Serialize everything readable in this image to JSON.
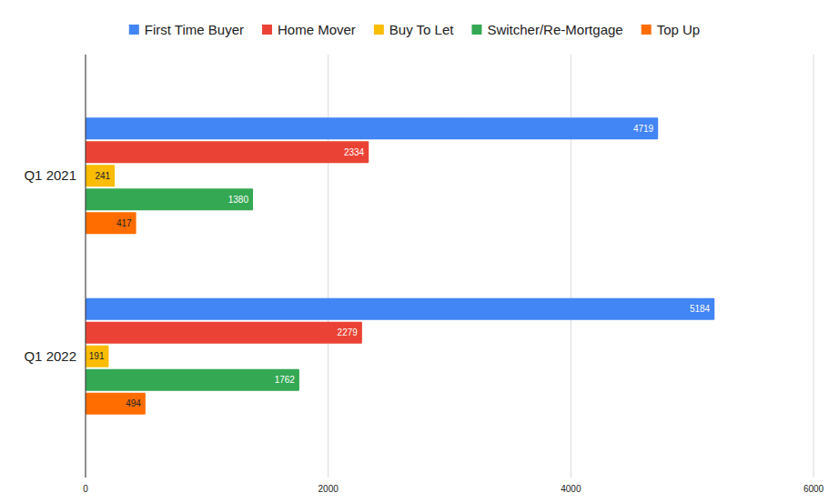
{
  "chart_data": {
    "type": "bar",
    "orientation": "horizontal",
    "categories": [
      "Q1 2021",
      "Q1 2022"
    ],
    "series": [
      {
        "name": "First Time Buyer",
        "color": "#4285f4",
        "values": [
          4719,
          5184
        ]
      },
      {
        "name": "Home Mover",
        "color": "#ea4335",
        "values": [
          2334,
          2279
        ]
      },
      {
        "name": "Buy To Let",
        "color": "#fbbc04",
        "values": [
          241,
          191
        ]
      },
      {
        "name": "Switcher/Re-Mortgage",
        "color": "#34a853",
        "values": [
          1380,
          1762
        ]
      },
      {
        "name": "Top Up",
        "color": "#ff6d01",
        "values": [
          417,
          494
        ]
      }
    ],
    "xlim": [
      0,
      6000
    ],
    "xticks": [
      0,
      2000,
      4000,
      6000
    ],
    "grid": true,
    "legend": "top",
    "data_labels": true
  }
}
